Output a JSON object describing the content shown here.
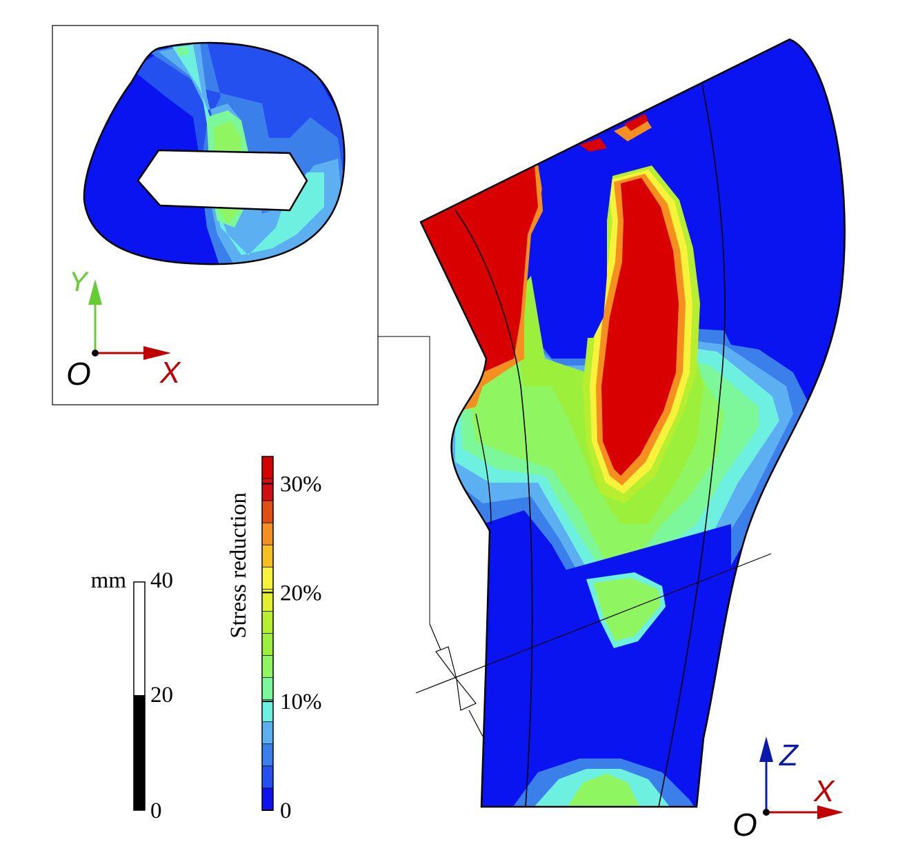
{
  "colorbar": {
    "title": "Stress reduction",
    "ticks": [
      {
        "value": 0,
        "label": "0"
      },
      {
        "value": 10,
        "label": "10%"
      },
      {
        "value": 20,
        "label": "20%"
      },
      {
        "value": 30,
        "label": "30%"
      }
    ],
    "range": [
      0,
      32.5
    ],
    "bands": [
      "#1010f0",
      "#2350ee",
      "#3b7fea",
      "#5cb0f2",
      "#6ef0e0",
      "#7cf79a",
      "#8ff560",
      "#9cf03c",
      "#b8ee30",
      "#e3f030",
      "#f7f23c",
      "#f7c020",
      "#f59020",
      "#e05010",
      "#d01010",
      "#d40000"
    ]
  },
  "scalebar": {
    "unit": "mm",
    "ticks": [
      {
        "value": 0,
        "label": "0"
      },
      {
        "value": 20,
        "label": "20"
      },
      {
        "value": 40,
        "label": "40"
      }
    ]
  },
  "inset_axes": {
    "origin": "O",
    "x": "X",
    "y": "Y"
  },
  "main_axes": {
    "origin": "O",
    "x": "X",
    "z": "Z"
  },
  "colors": {
    "blue": "#0a14f0",
    "red": "#d80000",
    "x_axis": "#c00000",
    "y_axis": "#66cc33",
    "z_axis": "#0a1aa8"
  }
}
